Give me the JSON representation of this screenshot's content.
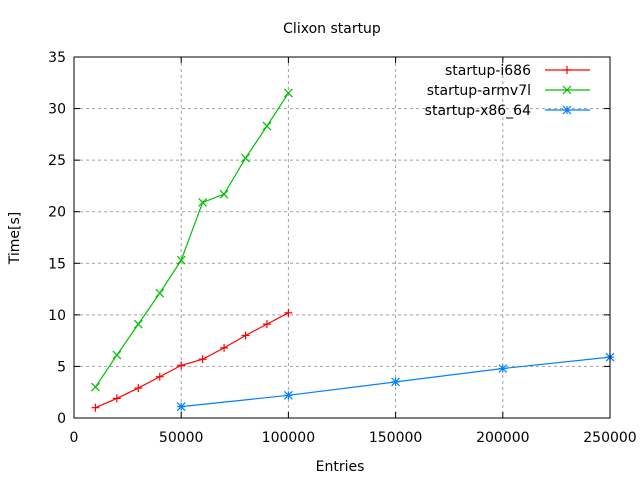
{
  "chart_data": {
    "type": "line",
    "title": "Clixon startup",
    "xlabel": "Entries",
    "ylabel": "Time[s]",
    "xlim": [
      0,
      250000
    ],
    "ylim": [
      0,
      35
    ],
    "xticks": [
      0,
      50000,
      100000,
      150000,
      200000,
      250000
    ],
    "yticks": [
      0,
      5,
      10,
      15,
      20,
      25,
      30,
      35
    ],
    "grid": true,
    "legend_position": "top-right",
    "series": [
      {
        "name": "startup-i686",
        "color": "#ff0000",
        "marker": "plus",
        "x": [
          10000,
          20000,
          30000,
          40000,
          50000,
          60000,
          70000,
          80000,
          90000,
          100000
        ],
        "y": [
          1.0,
          1.9,
          2.9,
          4.0,
          5.1,
          5.7,
          6.8,
          8.0,
          9.1,
          10.2
        ]
      },
      {
        "name": "startup-armv7l",
        "color": "#00c000",
        "marker": "cross",
        "x": [
          10000,
          20000,
          30000,
          40000,
          50000,
          60000,
          70000,
          80000,
          90000,
          100000
        ],
        "y": [
          3.0,
          6.1,
          9.1,
          12.1,
          15.3,
          20.9,
          21.7,
          25.2,
          28.3,
          31.5
        ]
      },
      {
        "name": "startup-x86_64",
        "color": "#0080ff",
        "marker": "star",
        "x": [
          50000,
          100000,
          150000,
          200000,
          250000
        ],
        "y": [
          1.1,
          2.2,
          3.5,
          4.8,
          5.9
        ]
      }
    ]
  }
}
